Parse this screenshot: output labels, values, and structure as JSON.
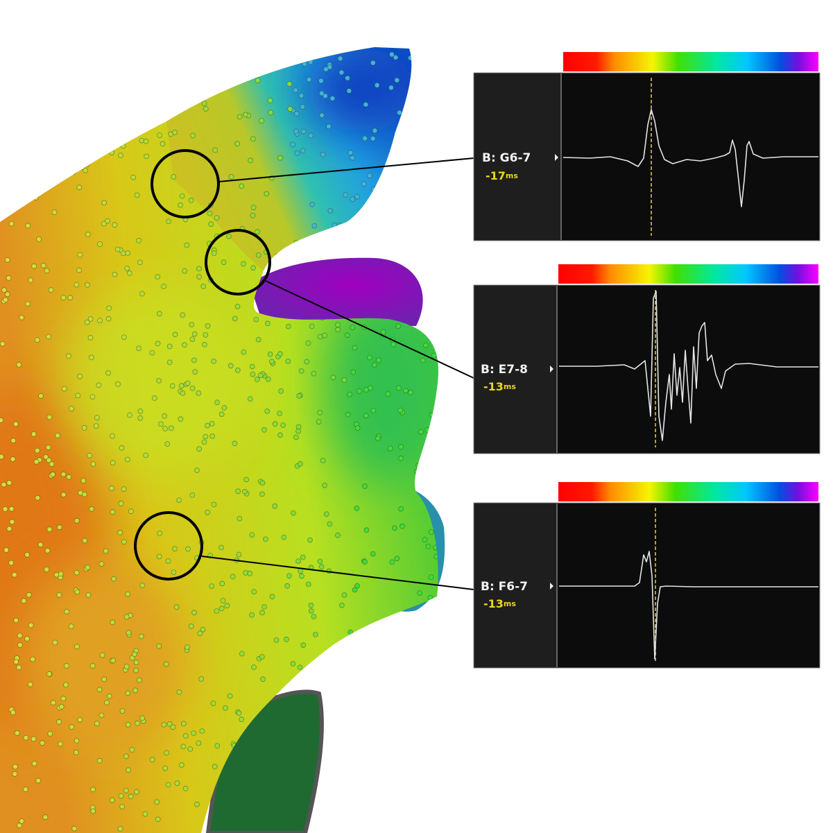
{
  "panels": [
    {
      "label": "B: G6-7",
      "time": "-17",
      "unit": "ms"
    },
    {
      "label": "B: E7-8",
      "time": "-13",
      "unit": "ms"
    },
    {
      "label": "B: F6-7",
      "time": "-13",
      "unit": "ms"
    }
  ]
}
